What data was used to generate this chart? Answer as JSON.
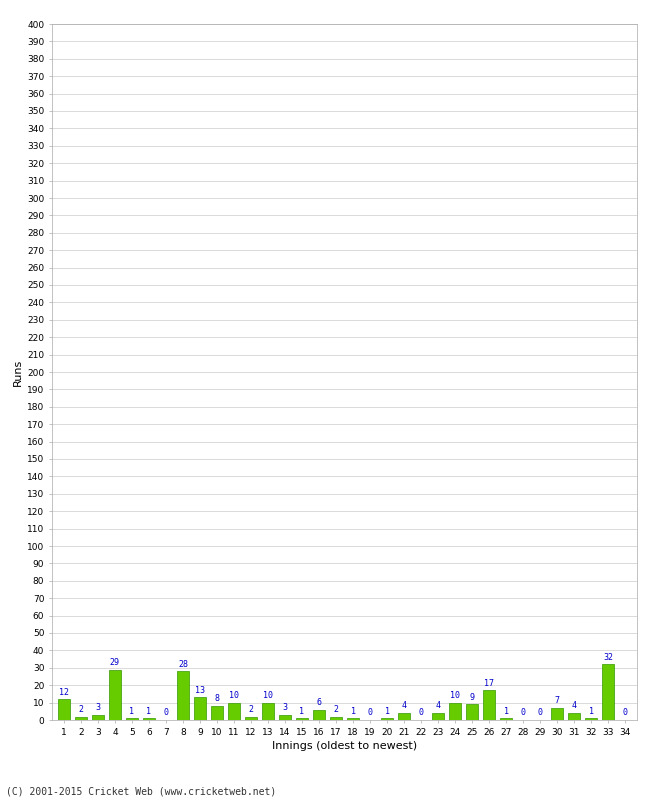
{
  "title": "",
  "xlabel": "Innings (oldest to newest)",
  "ylabel": "Runs",
  "values": [
    12,
    2,
    3,
    29,
    1,
    1,
    0,
    28,
    13,
    8,
    10,
    2,
    10,
    3,
    1,
    6,
    2,
    1,
    0,
    1,
    4,
    0,
    4,
    10,
    9,
    17,
    1,
    0,
    0,
    7,
    4,
    1,
    32,
    0
  ],
  "innings": [
    1,
    2,
    3,
    4,
    5,
    6,
    7,
    8,
    9,
    10,
    11,
    12,
    13,
    14,
    15,
    16,
    17,
    18,
    19,
    20,
    21,
    22,
    23,
    24,
    25,
    26,
    27,
    28,
    29,
    30,
    31,
    32,
    33,
    34
  ],
  "bar_color": "#66cc00",
  "bar_edge_color": "#339900",
  "label_color": "#0000cc",
  "ylim": [
    0,
    400
  ],
  "grid_color": "#cccccc",
  "bg_color": "#ffffff",
  "footer": "(C) 2001-2015 Cricket Web (www.cricketweb.net)",
  "axis_label_fontsize": 8,
  "tick_fontsize": 6.5,
  "value_label_fontsize": 6.0
}
